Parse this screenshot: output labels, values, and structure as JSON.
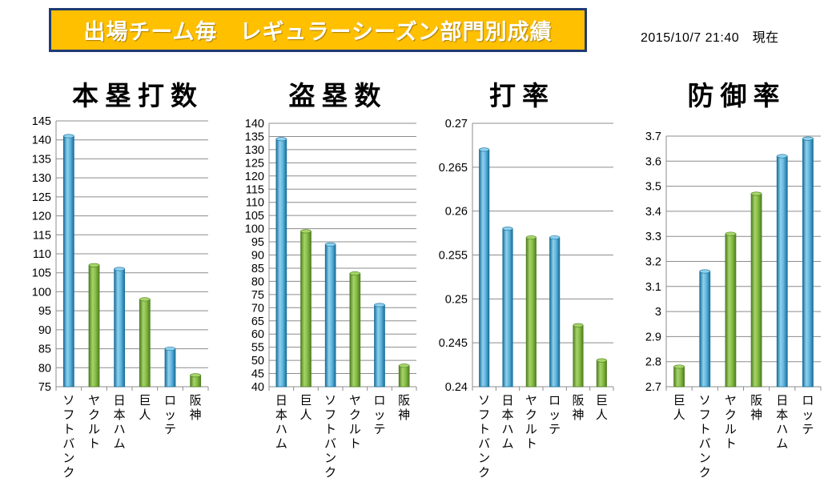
{
  "banner": {
    "title": "出場チーム毎　レギュラーシーズン部門別成績"
  },
  "timestamp": "2015/10/7 21:40　現在",
  "colors": {
    "blue_light": "#8fd1ee",
    "blue_dark": "#1a6f9a",
    "green_light": "#a6d46a",
    "green_dark": "#4f7f21",
    "banner_bg": "#ffc000",
    "banner_border": "#1f3b73"
  },
  "chart_data": [
    {
      "type": "bar",
      "title": "本塁打数",
      "categories": [
        "ソフトバンク",
        "ヤクルト",
        "日本ハム",
        "巨人",
        "ロッテ",
        "阪神"
      ],
      "values": [
        141,
        107,
        106,
        98,
        85,
        78
      ],
      "colors": [
        "blue",
        "green",
        "blue",
        "green",
        "blue",
        "green"
      ],
      "ylim": [
        75,
        145
      ],
      "yticks": [
        "75",
        "80",
        "85",
        "90",
        "95",
        "100",
        "105",
        "110",
        "115",
        "120",
        "125",
        "130",
        "135",
        "140",
        "145"
      ],
      "grid": true
    },
    {
      "type": "bar",
      "title": "盗塁数",
      "categories": [
        "日本ハム",
        "巨人",
        "ソフトバンク",
        "ヤクルト",
        "ロッテ",
        "阪神"
      ],
      "values": [
        134,
        99,
        94,
        83,
        71,
        48
      ],
      "colors": [
        "blue",
        "green",
        "blue",
        "green",
        "blue",
        "green"
      ],
      "ylim": [
        40,
        140
      ],
      "yticks": [
        "40",
        "45",
        "50",
        "55",
        "60",
        "65",
        "70",
        "75",
        "80",
        "85",
        "90",
        "95",
        "100",
        "105",
        "110",
        "115",
        "120",
        "125",
        "130",
        "135",
        "140"
      ],
      "grid": true
    },
    {
      "type": "bar",
      "title": "打率",
      "categories": [
        "ソフトバンク",
        "日本ハム",
        "ヤクルト",
        "ロッテ",
        "阪神",
        "巨人"
      ],
      "values": [
        0.267,
        0.258,
        0.257,
        0.257,
        0.247,
        0.243
      ],
      "colors": [
        "blue",
        "blue",
        "green",
        "blue",
        "green",
        "green"
      ],
      "ylim": [
        0.24,
        0.27
      ],
      "yticks": [
        "0.24",
        "0.245",
        "0.25",
        "0.255",
        "0.26",
        "0.265",
        "0.27"
      ],
      "grid": true
    },
    {
      "type": "bar",
      "title": "防御率",
      "categories": [
        "巨人",
        "ソフトバンク",
        "ヤクルト",
        "阪神",
        "日本ハム",
        "ロッテ"
      ],
      "values": [
        2.78,
        3.16,
        3.31,
        3.47,
        3.62,
        3.69
      ],
      "colors": [
        "green",
        "blue",
        "green",
        "green",
        "blue",
        "blue"
      ],
      "ylim": [
        2.7,
        3.7
      ],
      "yticks": [
        "2.7",
        "2.8",
        "2.9",
        "3",
        "3.1",
        "3.2",
        "3.3",
        "3.4",
        "3.5",
        "3.6",
        "3.7"
      ],
      "grid": true
    }
  ]
}
